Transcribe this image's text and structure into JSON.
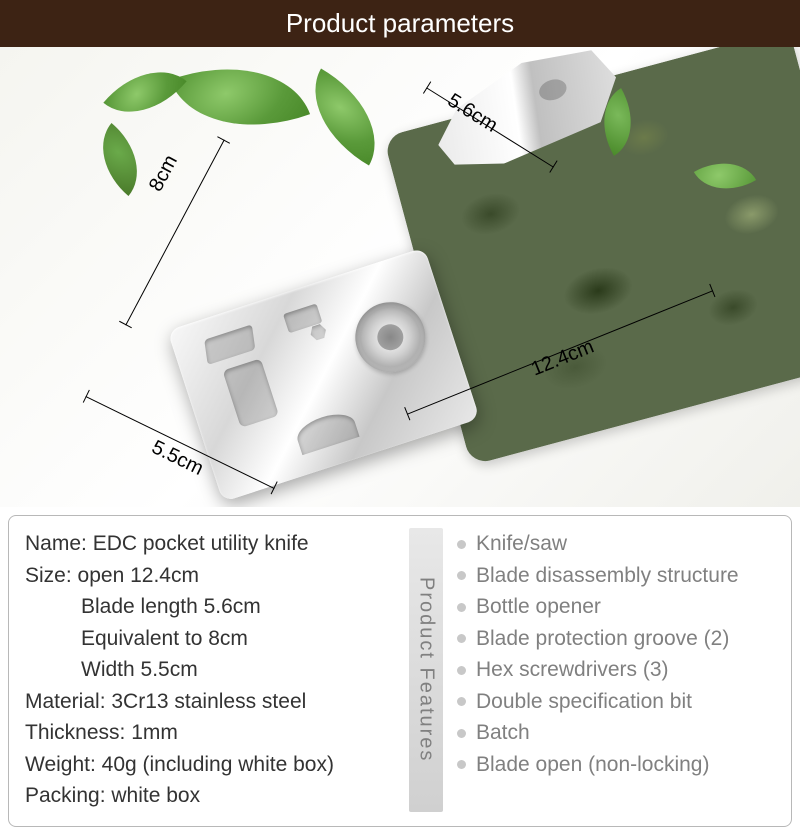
{
  "header": {
    "title": "Product parameters"
  },
  "hero": {
    "dimensions": {
      "body_height": "8cm",
      "blade_length": "5.6cm",
      "open_length": "12.4cm",
      "body_width": "5.5cm"
    },
    "colors": {
      "header_bg": "#3d2314",
      "header_text": "#ffffff",
      "leaf_light": "#8ec96a",
      "leaf_dark": "#4a8a2a",
      "camo_base": "#5a6a4a",
      "metal_light": "#f8f8f8",
      "metal_dark": "#c8c8c8",
      "dim_line": "#000000"
    }
  },
  "panel": {
    "vlabel": "Product Features",
    "border_color": "#b8b8b8",
    "text_color": "#333333",
    "feature_text_color": "#808080",
    "bullet_color": "#c8c8c8",
    "fontsize": 21,
    "specs": {
      "name_label": "Name: ",
      "name_value": "EDC pocket utility knife",
      "size_label": "Size: ",
      "size_open": "open 12.4cm",
      "size_blade": "Blade length 5.6cm",
      "size_equiv": "Equivalent to 8cm",
      "size_width": "Width 5.5cm",
      "material_label": "Material: ",
      "material_value": "3Cr13 stainless steel",
      "thickness_label": "Thickness: ",
      "thickness_value": "1mm",
      "weight_label": "Weight: ",
      "weight_value": "40g (including white box)",
      "packing_label": "Packing: ",
      "packing_value": "white box"
    },
    "features": [
      "Knife/saw",
      "Blade disassembly structure",
      "Bottle opener",
      "Blade protection groove (2)",
      "Hex screwdrivers (3)",
      "Double specification bit",
      "Batch",
      "Blade open (non-locking)"
    ]
  }
}
